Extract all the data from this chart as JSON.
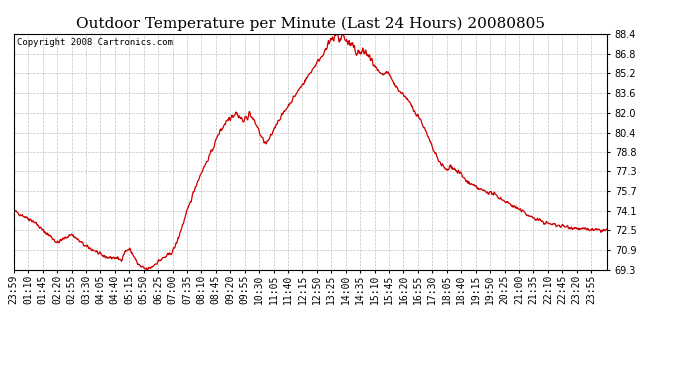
{
  "title": "Outdoor Temperature per Minute (Last 24 Hours) 20080805",
  "copyright_text": "Copyright 2008 Cartronics.com",
  "line_color": "#cc0000",
  "background_color": "#ffffff",
  "grid_color": "#bbbbbb",
  "ylim": [
    69.3,
    88.4
  ],
  "yticks": [
    69.3,
    70.9,
    72.5,
    74.1,
    75.7,
    77.3,
    78.8,
    80.4,
    82.0,
    83.6,
    85.2,
    86.8,
    88.4
  ],
  "xtick_labels": [
    "23:59",
    "01:10",
    "01:45",
    "02:20",
    "02:55",
    "03:30",
    "04:05",
    "04:40",
    "05:15",
    "05:50",
    "06:25",
    "07:00",
    "07:35",
    "08:10",
    "08:45",
    "09:20",
    "09:55",
    "10:30",
    "11:05",
    "11:40",
    "12:15",
    "12:50",
    "13:25",
    "14:00",
    "14:35",
    "15:10",
    "15:45",
    "16:20",
    "16:55",
    "17:30",
    "18:05",
    "18:40",
    "19:15",
    "19:50",
    "20:25",
    "21:00",
    "21:35",
    "22:10",
    "22:45",
    "23:20",
    "23:55"
  ],
  "title_fontsize": 11,
  "copyright_fontsize": 6.5,
  "tick_fontsize": 7,
  "line_width": 0.9
}
